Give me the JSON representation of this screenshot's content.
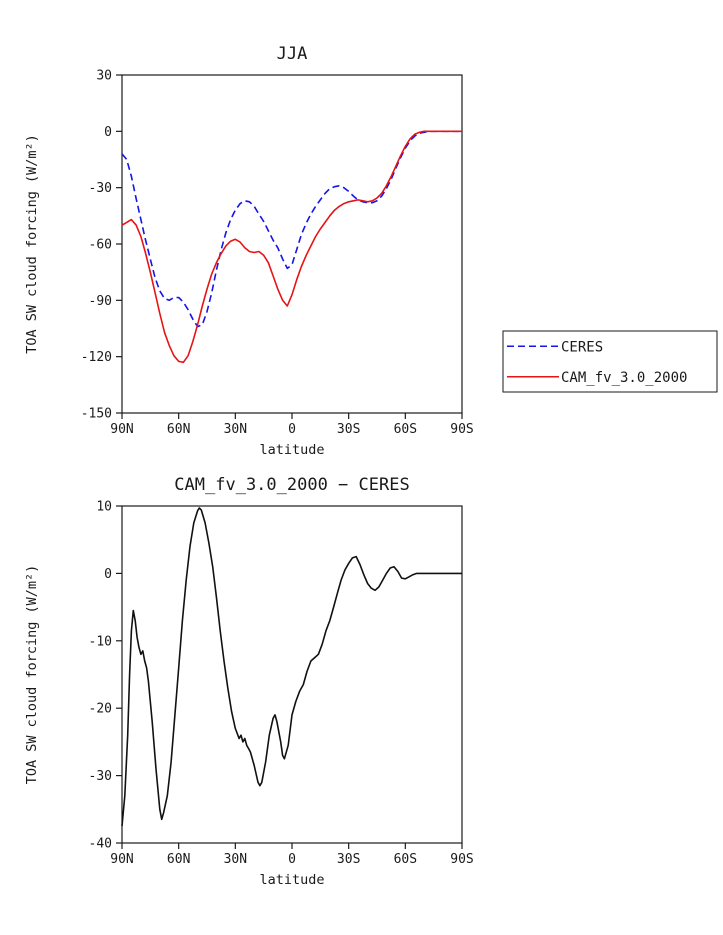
{
  "page": {
    "background": "#ffffff"
  },
  "chart_data": [
    {
      "type": "line",
      "title": "JJA",
      "xlabel": "latitude",
      "ylabel": "TOA SW cloud forcing (W/m²)",
      "xlim": [
        90,
        -90
      ],
      "ylim": [
        -150,
        30
      ],
      "grid": false,
      "xticks": {
        "values": [
          90,
          60,
          30,
          0,
          -30,
          -60,
          -90
        ],
        "labels": [
          "90N",
          "60N",
          "30N",
          "0",
          "30S",
          "60S",
          "90S"
        ]
      },
      "yticks": {
        "values": [
          30,
          0,
          -30,
          -60,
          -90,
          -120,
          -150
        ],
        "labels": [
          "30",
          "0",
          "-30",
          "-60",
          "-90",
          "-120",
          "-150"
        ]
      },
      "x": [
        90,
        87.5,
        85,
        82.5,
        80,
        77.5,
        75,
        72.5,
        70,
        67.5,
        65,
        62.5,
        60,
        57.5,
        55,
        52.5,
        50,
        47.5,
        45,
        42.5,
        40,
        37.5,
        35,
        32.5,
        30,
        27.5,
        25,
        22.5,
        20,
        17.5,
        15,
        12.5,
        10,
        7.5,
        5,
        2.5,
        0,
        -2.5,
        -5,
        -7.5,
        -10,
        -12.5,
        -15,
        -17.5,
        -20,
        -22.5,
        -25,
        -27.5,
        -30,
        -32.5,
        -35,
        -37.5,
        -40,
        -42.5,
        -45,
        -47.5,
        -50,
        -52.5,
        -55,
        -57.5,
        -60,
        -62.5,
        -65,
        -67.5,
        -70,
        -72.5,
        -75,
        -77.5,
        -80,
        -82.5,
        -85,
        -87.5,
        -90
      ],
      "legend": {
        "position": "right-outside",
        "entries": [
          "CERES",
          "CAM_fv_3.0_2000"
        ]
      },
      "series": [
        {
          "name": "CERES",
          "color": "#1515e6",
          "style": "dashed",
          "y": [
            -12,
            -15,
            -24,
            -36,
            -47,
            -58,
            -68,
            -78,
            -85,
            -89,
            -90,
            -88.5,
            -88.5,
            -91,
            -95,
            -100,
            -104,
            -103,
            -96,
            -86,
            -74,
            -63,
            -54,
            -47,
            -42,
            -38.5,
            -37,
            -37.5,
            -40,
            -44,
            -48,
            -53,
            -58,
            -62,
            -68,
            -73,
            -71,
            -63,
            -55,
            -49,
            -44,
            -40,
            -36.5,
            -33,
            -30.5,
            -29.5,
            -29,
            -30,
            -32,
            -34.5,
            -36.5,
            -37.5,
            -38,
            -38,
            -37,
            -34.5,
            -30.5,
            -25.5,
            -19.5,
            -14,
            -9,
            -5,
            -2.5,
            -1,
            -0.5,
            0,
            0,
            0,
            0,
            0,
            0,
            0,
            0
          ]
        },
        {
          "name": "CAM_fv_3.0_2000",
          "color": "#e61414",
          "style": "solid",
          "y": [
            -50,
            -48.5,
            -47,
            -50,
            -56,
            -65,
            -75,
            -86,
            -97,
            -107,
            -114,
            -119.5,
            -122.5,
            -123,
            -119.5,
            -112,
            -103,
            -93,
            -84,
            -76,
            -70,
            -65,
            -61,
            -58.5,
            -57.5,
            -59,
            -62,
            -64,
            -64.5,
            -64,
            -66,
            -70,
            -77,
            -84,
            -90,
            -93,
            -87,
            -79,
            -72,
            -66,
            -61,
            -56,
            -52,
            -48.5,
            -45,
            -42,
            -40,
            -38.5,
            -37.5,
            -37,
            -36.5,
            -37,
            -37.5,
            -37,
            -35.5,
            -33,
            -29,
            -24,
            -18.5,
            -13,
            -8,
            -4,
            -1.5,
            -0.5,
            0,
            0,
            0,
            0,
            0,
            0,
            0,
            0,
            0
          ]
        }
      ]
    },
    {
      "type": "line",
      "title": "CAM_fv_3.0_2000 − CERES",
      "xlabel": "latitude",
      "ylabel": "TOA SW cloud forcing (W/m²)",
      "xlim": [
        90,
        -90
      ],
      "ylim": [
        -40,
        10
      ],
      "grid": false,
      "xticks": {
        "values": [
          90,
          60,
          30,
          0,
          -30,
          -60,
          -90
        ],
        "labels": [
          "90N",
          "60N",
          "30N",
          "0",
          "30S",
          "60S",
          "90S"
        ]
      },
      "yticks": {
        "values": [
          10,
          0,
          -10,
          -20,
          -30,
          -40
        ],
        "labels": [
          "10",
          "0",
          "-10",
          "-20",
          "-30",
          "-40"
        ]
      },
      "series": [
        {
          "name": "CAM_fv_3.0_2000 minus CERES",
          "color": "#111111",
          "style": "solid",
          "x": [
            90,
            88.5,
            87,
            86,
            85,
            84,
            83,
            82,
            81,
            80,
            79,
            78,
            77,
            76,
            74,
            72,
            70,
            69,
            68,
            66,
            64,
            62,
            60,
            58,
            56,
            54,
            52,
            50,
            49,
            48,
            46,
            44,
            42,
            40,
            38,
            36,
            34,
            32,
            30,
            28,
            27,
            26,
            25,
            24,
            23,
            22,
            20,
            18,
            17,
            16,
            14,
            12,
            10,
            9,
            8,
            6,
            5,
            4,
            2,
            0,
            -2,
            -4,
            -6,
            -8,
            -10,
            -12,
            -14,
            -16,
            -18,
            -20,
            -22,
            -24,
            -26,
            -28,
            -30,
            -32,
            -34,
            -36,
            -38,
            -40,
            -42,
            -44,
            -46,
            -48,
            -50,
            -52,
            -54,
            -56,
            -58,
            -60,
            -62,
            -64,
            -66,
            -68,
            -70,
            -75,
            -80,
            -85,
            -90
          ],
          "y": [
            -37.5,
            -33,
            -24,
            -15,
            -8.5,
            -5.5,
            -7,
            -9.5,
            -11,
            -12,
            -11.5,
            -13,
            -14,
            -16,
            -22,
            -29,
            -35,
            -36.5,
            -35.5,
            -33,
            -28,
            -21,
            -14,
            -7,
            -1,
            4,
            7.5,
            9.3,
            9.7,
            9.4,
            7.5,
            4.5,
            1,
            -3.5,
            -8.5,
            -13,
            -17,
            -20.5,
            -23,
            -24.5,
            -24,
            -25,
            -24.5,
            -25.5,
            -26,
            -26.5,
            -28.5,
            -31,
            -31.5,
            -31,
            -28,
            -24,
            -21.5,
            -21,
            -22,
            -25,
            -27,
            -27.5,
            -25.5,
            -21,
            -19,
            -17.5,
            -16.5,
            -14.5,
            -13,
            -12.5,
            -12,
            -10.5,
            -8.5,
            -7,
            -5,
            -3,
            -1,
            0.5,
            1.5,
            2.3,
            2.5,
            1.3,
            -0.2,
            -1.5,
            -2.2,
            -2.5,
            -2,
            -1,
            0,
            0.8,
            1,
            0.3,
            -0.7,
            -0.8,
            -0.5,
            -0.2,
            0,
            0,
            0,
            0,
            0,
            0,
            0
          ]
        }
      ]
    }
  ]
}
